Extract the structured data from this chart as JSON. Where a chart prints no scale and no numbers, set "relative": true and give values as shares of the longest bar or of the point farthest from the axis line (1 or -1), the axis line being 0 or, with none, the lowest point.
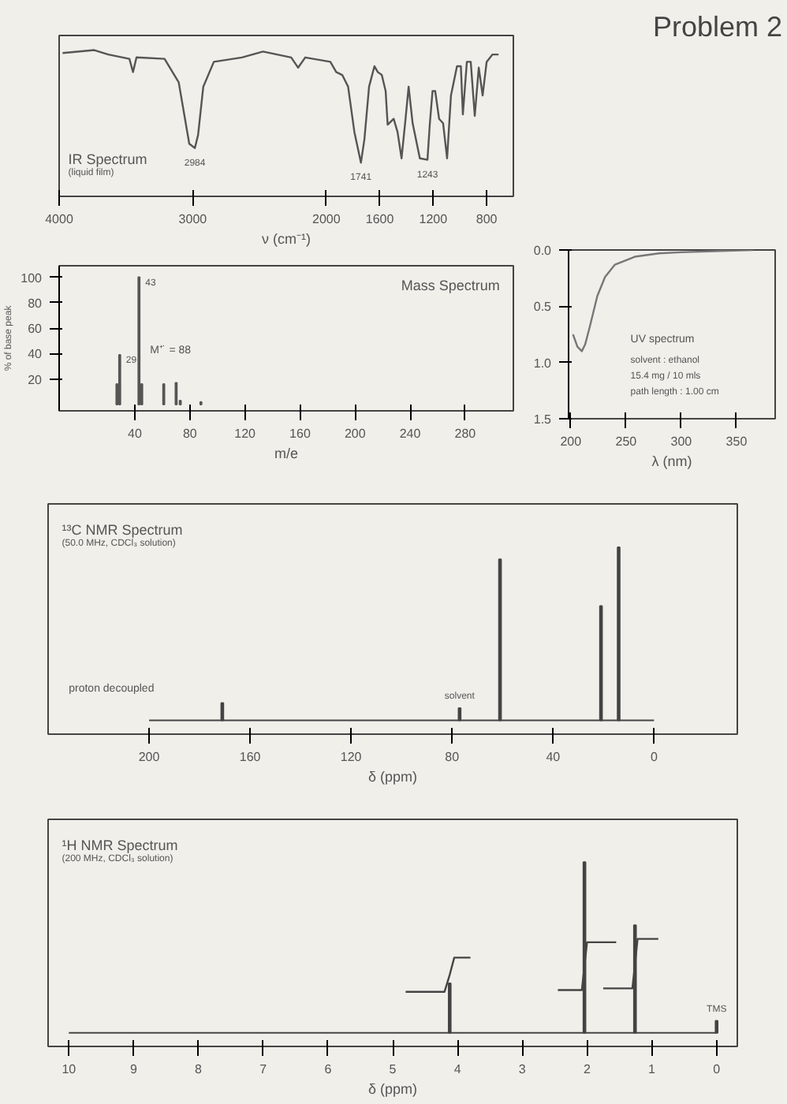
{
  "chart_data": [
    {
      "type": "line",
      "title": "IR Spectrum",
      "subtitle": "(liquid film)",
      "xlabel": "ν (cm⁻¹)",
      "relative": true,
      "tick_labels": "x",
      "xlim": [
        4000,
        600
      ],
      "xticks": [
        4000,
        3000,
        2000,
        1600,
        1200,
        800
      ],
      "x": [
        3974,
        3737,
        3632,
        3474,
        3447,
        3421,
        3211,
        3105,
        3026,
        2984,
        2960,
        2921,
        2842,
        2632,
        2474,
        2263,
        2211,
        2158,
        1970,
        1926,
        1881,
        1837,
        1790,
        1741,
        1715,
        1680,
        1640,
        1615,
        1585,
        1556,
        1541,
        1496,
        1467,
        1437,
        1407,
        1384,
        1354,
        1300,
        1243,
        1225,
        1205,
        1185,
        1156,
        1126,
        1096,
        1067,
        1022,
        993,
        978,
        948,
        919,
        889,
        859,
        830,
        800,
        756,
        711
      ],
      "values": [
        0.98,
        1.0,
        0.97,
        0.94,
        0.85,
        0.95,
        0.94,
        0.78,
        0.36,
        0.33,
        0.42,
        0.75,
        0.92,
        0.95,
        0.99,
        0.95,
        0.88,
        0.95,
        0.92,
        0.85,
        0.83,
        0.75,
        0.44,
        0.23,
        0.39,
        0.75,
        0.89,
        0.85,
        0.83,
        0.72,
        0.49,
        0.53,
        0.44,
        0.26,
        0.53,
        0.75,
        0.5,
        0.26,
        0.25,
        0.5,
        0.72,
        0.72,
        0.53,
        0.5,
        0.26,
        0.69,
        0.89,
        0.89,
        0.56,
        0.92,
        0.92,
        0.55,
        0.88,
        0.69,
        0.92,
        0.97,
        0.97
      ],
      "color": "#555555",
      "annotations": [
        {
          "text": "2984",
          "x": 2984,
          "y": 0.33
        },
        {
          "text": "1741",
          "x": 1741,
          "y": 0.23
        },
        {
          "text": "1243",
          "x": 1243,
          "y": 0.25
        }
      ]
    },
    {
      "type": "bar",
      "title": "Mass Spectrum",
      "xlabel": "m/e",
      "ylabel": "% of base peak",
      "xlim": [
        -15,
        315
      ],
      "xticks": [
        40,
        80,
        120,
        160,
        200,
        240,
        280
      ],
      "ylim": [
        -5,
        109
      ],
      "yticks": [
        20,
        40,
        60,
        80,
        100
      ],
      "x": [
        27,
        29,
        43,
        45,
        61,
        70,
        73,
        88
      ],
      "values": [
        16,
        39,
        100,
        16,
        16,
        17,
        3,
        2
      ],
      "color": "#555555",
      "annotations": [
        "M⁺˙ = 88",
        {
          "text": "29",
          "x": 29,
          "y": 39
        },
        {
          "text": "43",
          "x": 43,
          "y": 100
        }
      ]
    },
    {
      "type": "line",
      "title": "Problem 2",
      "xlabel": "λ (nm)",
      "xlim": [
        198,
        385
      ],
      "xticks": [
        200,
        250,
        300,
        350
      ],
      "ylim": [
        1.5,
        0.0
      ],
      "yticks": [
        {
          "value": 0.0,
          "label": "0.0"
        },
        {
          "value": 0.5,
          "label": "0.5"
        },
        {
          "value": 1.0,
          "label": "1.0"
        },
        {
          "value": 1.5,
          "label": "1.5"
        }
      ],
      "x": [
        202,
        206,
        210,
        213,
        217,
        224,
        231,
        240,
        258,
        280,
        300,
        330,
        365
      ],
      "values": [
        0.75,
        0.86,
        0.9,
        0.84,
        0.69,
        0.41,
        0.24,
        0.13,
        0.06,
        0.03,
        0.02,
        0.01,
        0.0
      ],
      "color": "#777777",
      "annotations": [
        "UV spectrum",
        "solvent : ethanol",
        "15.4 mg / 10 mls",
        "path length : 1.00 cm"
      ]
    },
    {
      "type": "bar",
      "title": "¹³C NMR Spectrum",
      "subtitle": "(50.0 MHz, CDCl₃ solution)",
      "xlabel": "δ (ppm)",
      "relative": true,
      "tick_labels": "x",
      "xlim": [
        240,
        -33
      ],
      "xticks": [
        200,
        160,
        120,
        80,
        40,
        0
      ],
      "x": [
        171,
        77,
        61,
        21,
        14
      ],
      "values": [
        0.1,
        0.07,
        0.93,
        0.66,
        1.0
      ],
      "color": "#444444",
      "annotations": [
        "proton decoupled",
        {
          "text": "solvent",
          "x": 77,
          "y": 0.07
        }
      ]
    },
    {
      "type": "bar",
      "title": "¹H NMR Spectrum",
      "subtitle": "(200 MHz, CDCl₃ solution)",
      "xlabel": "δ (ppm)",
      "relative": true,
      "tick_labels": "x",
      "xlim": [
        10.32,
        -0.32
      ],
      "xticks": [
        10,
        9,
        8,
        7,
        6,
        5,
        4,
        3,
        2,
        1,
        0
      ],
      "series": [
        {
          "type": "bar",
          "color": "#444444",
          "x": [
            4.12,
            2.04,
            1.26,
            0.0
          ],
          "values": [
            0.29,
            1.0,
            0.63,
            0.07
          ]
        },
        {
          "type": "line",
          "color": "#444444",
          "x": [
            4.8,
            4.2,
            4.12,
            4.05,
            3.8
          ],
          "values": [
            0.24,
            0.24,
            0.34,
            0.44,
            0.44
          ]
        },
        {
          "type": "line",
          "color": "#444444",
          "x": [
            2.45,
            2.08,
            2.04,
            2.0,
            1.55
          ],
          "values": [
            0.25,
            0.25,
            0.39,
            0.53,
            0.53
          ]
        },
        {
          "type": "line",
          "color": "#444444",
          "x": [
            1.75,
            1.3,
            1.26,
            1.22,
            0.9
          ],
          "values": [
            0.26,
            0.26,
            0.4,
            0.55,
            0.55
          ]
        }
      ],
      "annotations": [
        {
          "text": "TMS",
          "x": 0,
          "y": 0.07
        }
      ]
    }
  ]
}
